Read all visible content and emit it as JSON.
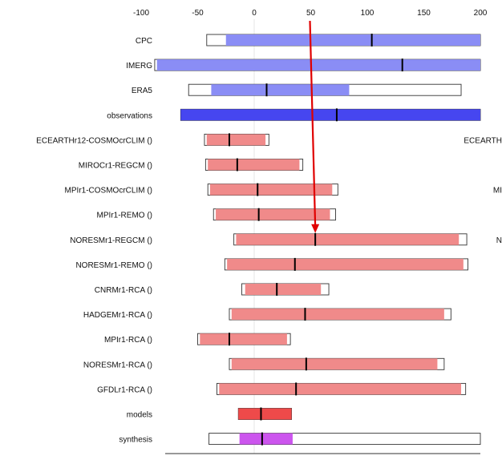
{
  "chart_data": {
    "type": "range-bar",
    "x_ticks": [
      -100,
      -50,
      0,
      50,
      100,
      150,
      200
    ],
    "x_range": [
      -100,
      200
    ],
    "grid": "zero-line only",
    "colors": {
      "obs_light": "#8a8df5",
      "obs_dark": "#4646f0",
      "model": "#f08a8a",
      "models_agg": "#ee4a4a",
      "synthesis": "#cc55ee",
      "marker": "#000000",
      "arrow": "#e00000"
    },
    "rows": [
      {
        "label": "CPC",
        "outer": [
          -42,
          200
        ],
        "inner": [
          -25,
          200
        ],
        "mean": 104,
        "color": "obs_light"
      },
      {
        "label": "IMERG",
        "outer": [
          -88,
          200
        ],
        "inner": [
          -86,
          200
        ],
        "mean": 131,
        "color": "obs_light"
      },
      {
        "label": "ERA5",
        "outer": [
          -58,
          183
        ],
        "inner": [
          -38,
          84
        ],
        "mean": 11,
        "color": "obs_light"
      },
      {
        "label": "observations",
        "outer": [
          -65,
          200
        ],
        "inner": [
          -65,
          200
        ],
        "mean": 73,
        "color": "obs_dark"
      },
      {
        "label": "ECEARTHr12-COSMOcrCLIM ()",
        "outer": [
          -44,
          13
        ],
        "inner": [
          -42,
          10
        ],
        "mean": -22,
        "color": "model"
      },
      {
        "label": "MIROCr1-REGCM ()",
        "outer": [
          -43,
          43
        ],
        "inner": [
          -41,
          40
        ],
        "mean": -15,
        "color": "model"
      },
      {
        "label": "MPIr1-COSMOcrCLIM ()",
        "outer": [
          -41,
          74
        ],
        "inner": [
          -39,
          69
        ],
        "mean": 3,
        "color": "model"
      },
      {
        "label": "MPIr1-REMO ()",
        "outer": [
          -36,
          72
        ],
        "inner": [
          -34,
          67
        ],
        "mean": 4,
        "color": "model"
      },
      {
        "label": "NORESMr1-REGCM ()",
        "outer": [
          -18,
          188
        ],
        "inner": [
          -16,
          181
        ],
        "mean": 54,
        "color": "model"
      },
      {
        "label": "NORESMr1-REMO ()",
        "outer": [
          -26,
          189
        ],
        "inner": [
          -24,
          185
        ],
        "mean": 36,
        "color": "model"
      },
      {
        "label": "CNRMr1-RCA ()",
        "outer": [
          -11,
          66
        ],
        "inner": [
          -8,
          59
        ],
        "mean": 20,
        "color": "model"
      },
      {
        "label": "HADGEMr1-RCA ()",
        "outer": [
          -22,
          174
        ],
        "inner": [
          -20,
          168
        ],
        "mean": 45,
        "color": "model"
      },
      {
        "label": "MPIr1-RCA ()",
        "outer": [
          -50,
          32
        ],
        "inner": [
          -48,
          29
        ],
        "mean": -22,
        "color": "model"
      },
      {
        "label": "NORESMr1-RCA ()",
        "outer": [
          -22,
          168
        ],
        "inner": [
          -20,
          162
        ],
        "mean": 46,
        "color": "model"
      },
      {
        "label": "GFDLr1-RCA ()",
        "outer": [
          -33,
          187
        ],
        "inner": [
          -31,
          183
        ],
        "mean": 37,
        "color": "model"
      },
      {
        "label": "models",
        "outer": [
          -14,
          33
        ],
        "inner": [
          -14,
          33
        ],
        "mean": 6,
        "color": "models_agg"
      },
      {
        "label": "synthesis",
        "outer": [
          -40,
          200
        ],
        "inner": [
          -13,
          34
        ],
        "mean": 7,
        "color": "synthesis"
      }
    ],
    "right_labels": [
      {
        "row": 4,
        "text": "ECEARTH"
      },
      {
        "row": 6,
        "text": "MI"
      },
      {
        "row": 8,
        "text": "N"
      }
    ],
    "annotation": {
      "type": "arrow",
      "from": [
        50,
        "top"
      ],
      "to": [
        54,
        "NORESMr1-REGCM ()"
      ]
    }
  }
}
